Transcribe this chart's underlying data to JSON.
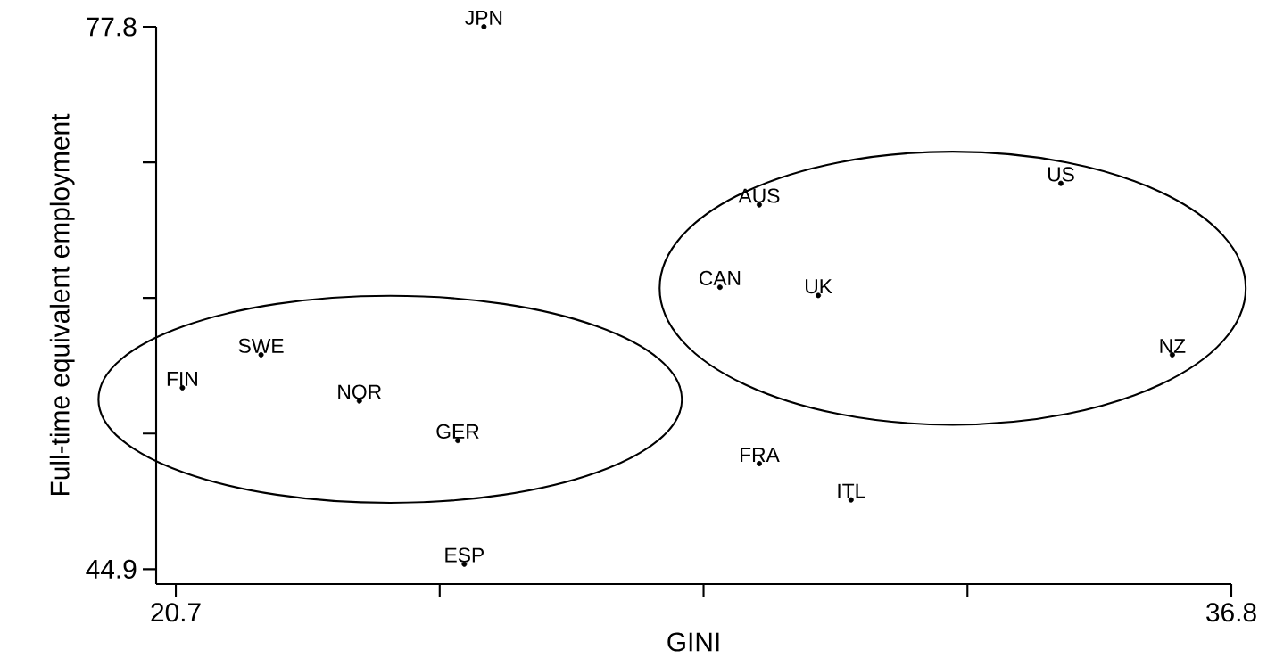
{
  "chart_data": {
    "type": "scatter",
    "xlabel": "GINI",
    "ylabel": "Full-time equivalent employment",
    "x": [
      25.4,
      34.2,
      29.6,
      29.0,
      30.5,
      35.9,
      22.0,
      20.8,
      23.5,
      25.0,
      29.6,
      31.0,
      25.1
    ],
    "series": [
      {
        "color": "#000000",
        "values": [
          77.8,
          68.3,
          67.0,
          62.0,
          61.5,
          57.9,
          57.9,
          55.9,
          55.1,
          52.7,
          51.3,
          49.1,
          45.2
        ],
        "value_labels": [
          "JPN",
          "US",
          "AUS",
          "CAN",
          "UK",
          "NZ",
          "SWE",
          "FIN",
          "NOR",
          "GER",
          "FRA",
          "ITL",
          "ESP"
        ]
      }
    ],
    "marker": "circle",
    "xlim": [
      20.4,
      36.8
    ],
    "ylim": [
      44.0,
      77.8
    ],
    "xticks": [
      20.7,
      {
        "value": 24.725,
        "label": null
      },
      {
        "value": 28.75,
        "label": null
      },
      {
        "value": 32.775,
        "label": null
      },
      36.8
    ],
    "yticks": [
      44.9,
      {
        "value": 53.125,
        "label": null
      },
      {
        "value": 61.35,
        "label": null
      },
      {
        "value": 69.575,
        "label": null
      },
      77.8
    ]
  }
}
